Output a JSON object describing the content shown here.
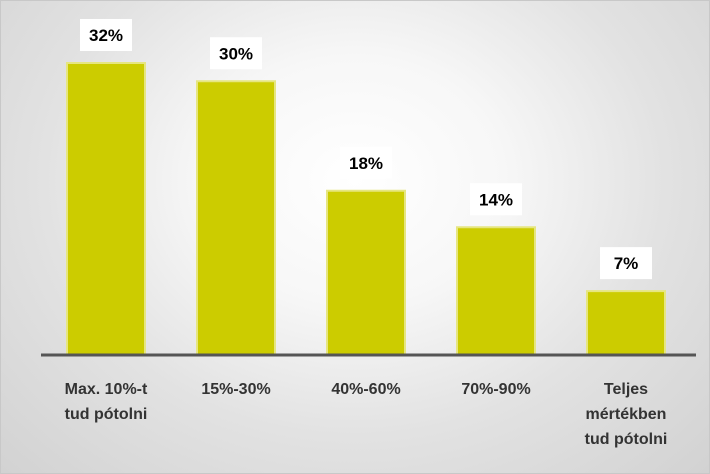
{
  "chart_data": {
    "type": "bar",
    "categories": [
      [
        "Max. 10%-t",
        "tud pótolni"
      ],
      [
        "15%-30%"
      ],
      [
        "40%-60%"
      ],
      [
        "70%-90%"
      ],
      [
        "Teljes",
        "mértékben",
        "tud pótolni"
      ]
    ],
    "values": [
      32,
      30,
      18,
      14,
      7
    ],
    "value_labels": [
      "32%",
      "30%",
      "18%",
      "14%",
      "7%"
    ],
    "ylim": [
      0,
      35
    ],
    "grid": false,
    "legend": "none",
    "colors": {
      "bar": "#cccc00",
      "bar_edge": "#e6e680",
      "axis": "#555555"
    }
  }
}
